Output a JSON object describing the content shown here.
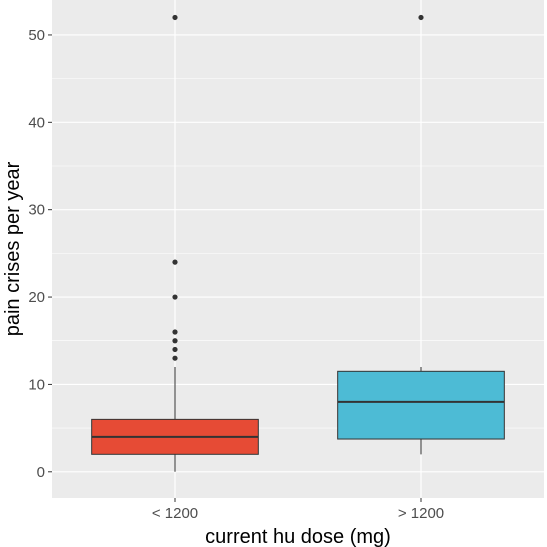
{
  "chart_data": {
    "type": "box",
    "title": "",
    "xlabel": "current hu dose (mg)",
    "ylabel": "pain crises per year",
    "ylim": [
      -3,
      54
    ],
    "yticks": [
      0,
      10,
      20,
      30,
      40,
      50
    ],
    "categories": [
      "< 1200",
      "> 1200"
    ],
    "grid": true,
    "legend": "none",
    "panel_background": "#EBEBEB",
    "grid_color": "#FFFFFF",
    "boxes": [
      {
        "category": "< 1200",
        "color": "#E64B35",
        "lower_whisker": 0,
        "q1": 2,
        "median": 4,
        "q3": 6,
        "upper_whisker": 12,
        "outliers": [
          13,
          14,
          15,
          16,
          20,
          24,
          52
        ]
      },
      {
        "category": "> 1200",
        "color": "#4DBBD5",
        "lower_whisker": 2,
        "q1": 3.75,
        "median": 8,
        "q3": 11.5,
        "upper_whisker": 12,
        "outliers": [
          52
        ]
      }
    ]
  }
}
